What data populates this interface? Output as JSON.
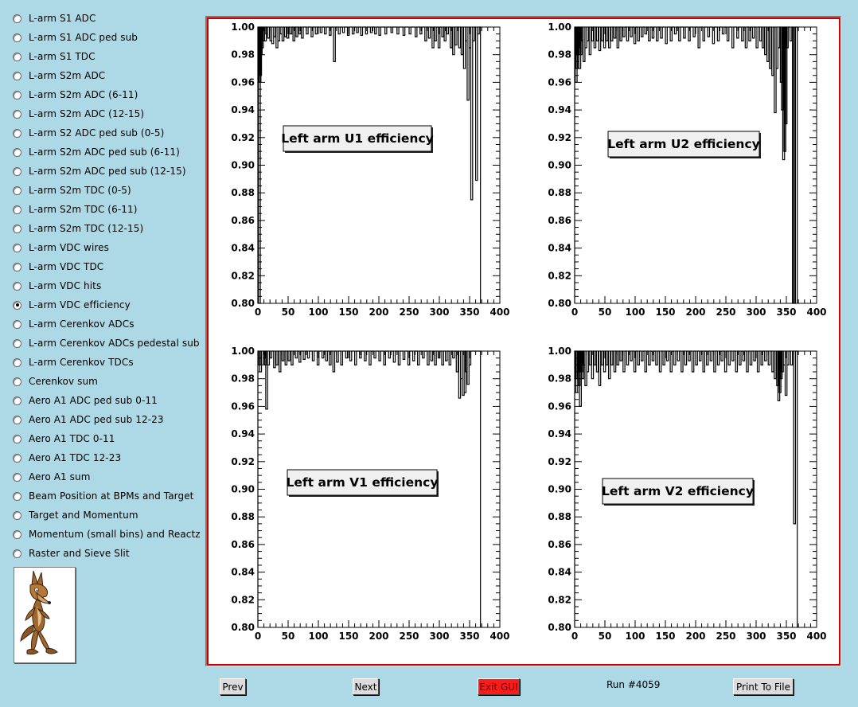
{
  "sidebar": {
    "items": [
      {
        "label": "L-arm S1 ADC",
        "selected": false
      },
      {
        "label": "L-arm S1 ADC ped sub",
        "selected": false
      },
      {
        "label": "L-arm S1 TDC",
        "selected": false
      },
      {
        "label": "L-arm S2m ADC",
        "selected": false
      },
      {
        "label": "L-arm S2m ADC (6-11)",
        "selected": false
      },
      {
        "label": "L-arm S2m ADC (12-15)",
        "selected": false
      },
      {
        "label": "L-arm S2 ADC ped sub (0-5)",
        "selected": false
      },
      {
        "label": "L-arm S2m ADC ped sub (6-11)",
        "selected": false
      },
      {
        "label": "L-arm S2m ADC ped sub (12-15)",
        "selected": false
      },
      {
        "label": "L-arm S2m TDC (0-5)",
        "selected": false
      },
      {
        "label": "L-arm S2m TDC (6-11)",
        "selected": false
      },
      {
        "label": "L-arm S2m TDC (12-15)",
        "selected": false
      },
      {
        "label": "L-arm VDC wires",
        "selected": false
      },
      {
        "label": "L-arm VDC TDC",
        "selected": false
      },
      {
        "label": "L-arm VDC hits",
        "selected": false
      },
      {
        "label": "L-arm VDC efficiency",
        "selected": true
      },
      {
        "label": "L-arm Cerenkov ADCs",
        "selected": false
      },
      {
        "label": "L-arm Cerenkov ADCs pedestal sub",
        "selected": false
      },
      {
        "label": "L-arm Cerenkov TDCs",
        "selected": false
      },
      {
        "label": "Cerenkov sum",
        "selected": false
      },
      {
        "label": "Aero A1 ADC ped sub 0-11",
        "selected": false
      },
      {
        "label": "Aero A1 ADC ped sub 12-23",
        "selected": false
      },
      {
        "label": "Aero A1 TDC 0-11",
        "selected": false
      },
      {
        "label": "Aero A1 TDC 12-23",
        "selected": false
      },
      {
        "label": "Aero A1 sum",
        "selected": false
      },
      {
        "label": "Beam Position at BPMs and Target",
        "selected": false
      },
      {
        "label": "Target and Momentum",
        "selected": false
      },
      {
        "label": "Momentum (small bins) and Reactz",
        "selected": false
      },
      {
        "label": "Raster and Sieve Slit",
        "selected": false
      }
    ],
    "logo_icon": "coyote-logo-icon"
  },
  "footer": {
    "prev_label": "Prev",
    "next_label": "Next",
    "exit_label": "Exit GUI",
    "run_label": "Run #4059",
    "print_label": "Print To File"
  },
  "colors": {
    "background": "#add8e6",
    "canvas_border": "#cc0000",
    "exit_button": "#ff1a1a"
  },
  "chart_data": [
    {
      "type": "bar",
      "title": "Left arm U1 efficiency",
      "xlim": [
        0,
        400
      ],
      "ylim": [
        0.8,
        1.0
      ],
      "xticks": [
        "0",
        "50",
        "100",
        "150",
        "200",
        "250",
        "300",
        "350",
        "400"
      ],
      "yticks": [
        "0.80",
        "0.82",
        "0.84",
        "0.86",
        "0.88",
        "0.90",
        "0.92",
        "0.94",
        "0.96",
        "0.98",
        "1.00"
      ],
      "range": [
        0,
        368
      ],
      "dips": [
        [
          1,
          0.8
        ],
        [
          2,
          0.96
        ],
        [
          3,
          0.965
        ],
        [
          4,
          0.98
        ],
        [
          6,
          0.985
        ],
        [
          8,
          0.99
        ],
        [
          11,
          0.99
        ],
        [
          13,
          0.995
        ],
        [
          16,
          0.992
        ],
        [
          20,
          0.99
        ],
        [
          23,
          0.988
        ],
        [
          26,
          0.993
        ],
        [
          30,
          0.985
        ],
        [
          33,
          0.99
        ],
        [
          37,
          0.995
        ],
        [
          40,
          0.99
        ],
        [
          44,
          0.993
        ],
        [
          48,
          0.992
        ],
        [
          53,
          0.995
        ],
        [
          58,
          0.99
        ],
        [
          63,
          0.993
        ],
        [
          68,
          0.995
        ],
        [
          72,
          0.992
        ],
        [
          80,
          0.995
        ],
        [
          88,
          0.993
        ],
        [
          95,
          0.995
        ],
        [
          103,
          0.996
        ],
        [
          110,
          0.995
        ],
        [
          118,
          0.994
        ],
        [
          125,
          0.975
        ],
        [
          133,
          0.995
        ],
        [
          140,
          0.996
        ],
        [
          148,
          0.994
        ],
        [
          156,
          0.995
        ],
        [
          163,
          0.996
        ],
        [
          170,
          0.994
        ],
        [
          178,
          0.995
        ],
        [
          186,
          0.996
        ],
        [
          193,
          0.995
        ],
        [
          200,
          0.994
        ],
        [
          210,
          0.995
        ],
        [
          220,
          0.996
        ],
        [
          230,
          0.995
        ],
        [
          240,
          0.994
        ],
        [
          250,
          0.995
        ],
        [
          260,
          0.993
        ],
        [
          268,
          0.995
        ],
        [
          276,
          0.99
        ],
        [
          282,
          0.992
        ],
        [
          288,
          0.985
        ],
        [
          292,
          0.99
        ],
        [
          298,
          0.985
        ],
        [
          304,
          0.993
        ],
        [
          308,
          0.99
        ],
        [
          312,
          0.995
        ],
        [
          318,
          0.985
        ],
        [
          322,
          0.98
        ],
        [
          326,
          0.987
        ],
        [
          332,
          0.985
        ],
        [
          336,
          0.98
        ],
        [
          340,
          0.97
        ],
        [
          343,
          0.99
        ],
        [
          346,
          0.947
        ],
        [
          349,
          0.985
        ],
        [
          352,
          0.875
        ],
        [
          355,
          0.99
        ],
        [
          360,
          0.889
        ],
        [
          363,
          0.995
        ]
      ]
    },
    {
      "type": "bar",
      "title": "Left arm U2 efficiency",
      "xlim": [
        0,
        400
      ],
      "ylim": [
        0.8,
        1.0
      ],
      "xticks": [
        "0",
        "50",
        "100",
        "150",
        "200",
        "250",
        "300",
        "350",
        "400"
      ],
      "yticks": [
        "0.80",
        "0.82",
        "0.84",
        "0.86",
        "0.88",
        "0.90",
        "0.92",
        "0.94",
        "0.96",
        "0.98",
        "1.00"
      ],
      "range": [
        0,
        368
      ],
      "dips": [
        [
          1,
          0.96
        ],
        [
          2,
          0.97
        ],
        [
          3,
          0.98
        ],
        [
          5,
          0.985
        ],
        [
          7,
          0.97
        ],
        [
          9,
          0.98
        ],
        [
          11,
          0.99
        ],
        [
          14,
          0.975
        ],
        [
          17,
          0.985
        ],
        [
          20,
          0.99
        ],
        [
          24,
          0.98
        ],
        [
          28,
          0.99
        ],
        [
          32,
          0.985
        ],
        [
          36,
          0.99
        ],
        [
          40,
          0.983
        ],
        [
          44,
          0.99
        ],
        [
          48,
          0.985
        ],
        [
          52,
          0.99
        ],
        [
          56,
          0.985
        ],
        [
          60,
          0.99
        ],
        [
          65,
          0.992
        ],
        [
          70,
          0.985
        ],
        [
          75,
          0.99
        ],
        [
          80,
          0.993
        ],
        [
          86,
          0.99
        ],
        [
          92,
          0.993
        ],
        [
          98,
          0.988
        ],
        [
          104,
          0.99
        ],
        [
          110,
          0.993
        ],
        [
          116,
          0.995
        ],
        [
          122,
          0.99
        ],
        [
          128,
          0.992
        ],
        [
          135,
          0.99
        ],
        [
          142,
          0.992
        ],
        [
          150,
          0.988
        ],
        [
          158,
          0.99
        ],
        [
          165,
          0.995
        ],
        [
          172,
          0.99
        ],
        [
          180,
          0.992
        ],
        [
          188,
          0.99
        ],
        [
          196,
          0.993
        ],
        [
          204,
          0.985
        ],
        [
          212,
          0.99
        ],
        [
          220,
          0.993
        ],
        [
          228,
          0.988
        ],
        [
          236,
          0.99
        ],
        [
          244,
          0.995
        ],
        [
          252,
          0.99
        ],
        [
          260,
          0.985
        ],
        [
          268,
          0.992
        ],
        [
          276,
          0.99
        ],
        [
          282,
          0.985
        ],
        [
          288,
          0.99
        ],
        [
          294,
          0.992
        ],
        [
          300,
          0.985
        ],
        [
          306,
          0.99
        ],
        [
          310,
          0.985
        ],
        [
          314,
          0.98
        ],
        [
          318,
          0.975
        ],
        [
          322,
          0.97
        ],
        [
          326,
          0.965
        ],
        [
          330,
          0.938
        ],
        [
          333,
          0.97
        ],
        [
          336,
          0.985
        ],
        [
          340,
          0.96
        ],
        [
          342,
          0.94
        ],
        [
          344,
          0.904
        ],
        [
          346,
          0.91
        ],
        [
          348,
          0.93
        ],
        [
          350,
          0.985
        ],
        [
          356,
          0.99
        ],
        [
          360,
          0.8
        ],
        [
          362,
          0.8
        ]
      ]
    },
    {
      "type": "bar",
      "title": "Left arm V1 efficiency",
      "xlim": [
        0,
        400
      ],
      "ylim": [
        0.8,
        1.0
      ],
      "xticks": [
        "0",
        "50",
        "100",
        "150",
        "200",
        "250",
        "300",
        "350",
        "400"
      ],
      "yticks": [
        "0.80",
        "0.82",
        "0.84",
        "0.86",
        "0.88",
        "0.90",
        "0.92",
        "0.94",
        "0.96",
        "0.98",
        "1.00"
      ],
      "range": [
        0,
        368
      ],
      "dips": [
        [
          1,
          0.99
        ],
        [
          3,
          0.985
        ],
        [
          6,
          0.99
        ],
        [
          9,
          0.995
        ],
        [
          11,
          0.99
        ],
        [
          13,
          0.958
        ],
        [
          16,
          0.99
        ],
        [
          20,
          0.995
        ],
        [
          26,
          0.988
        ],
        [
          30,
          0.99
        ],
        [
          35,
          0.985
        ],
        [
          40,
          0.993
        ],
        [
          45,
          0.99
        ],
        [
          50,
          0.993
        ],
        [
          55,
          0.99
        ],
        [
          62,
          0.995
        ],
        [
          68,
          0.992
        ],
        [
          75,
          0.994
        ],
        [
          82,
          0.995
        ],
        [
          90,
          0.993
        ],
        [
          98,
          0.99
        ],
        [
          106,
          0.995
        ],
        [
          112,
          0.993
        ],
        [
          118,
          0.99
        ],
        [
          124,
          0.985
        ],
        [
          130,
          0.992
        ],
        [
          137,
          0.99
        ],
        [
          145,
          0.995
        ],
        [
          152,
          0.993
        ],
        [
          160,
          0.99
        ],
        [
          168,
          0.995
        ],
        [
          176,
          0.993
        ],
        [
          184,
          0.99
        ],
        [
          192,
          0.995
        ],
        [
          200,
          0.993
        ],
        [
          208,
          0.99
        ],
        [
          216,
          0.995
        ],
        [
          224,
          0.992
        ],
        [
          232,
          0.99
        ],
        [
          240,
          0.994
        ],
        [
          248,
          0.99
        ],
        [
          256,
          0.993
        ],
        [
          264,
          0.99
        ],
        [
          272,
          0.995
        ],
        [
          280,
          0.99
        ],
        [
          286,
          0.993
        ],
        [
          292,
          0.99
        ],
        [
          298,
          0.995
        ],
        [
          304,
          0.99
        ],
        [
          310,
          0.993
        ],
        [
          316,
          0.99
        ],
        [
          322,
          0.995
        ],
        [
          328,
          0.985
        ],
        [
          332,
          0.966
        ],
        [
          335,
          0.98
        ],
        [
          338,
          0.968
        ],
        [
          341,
          0.97
        ],
        [
          343,
          0.985
        ],
        [
          346,
          0.976
        ],
        [
          349,
          0.99
        ]
      ]
    },
    {
      "type": "bar",
      "title": "Left arm V2 efficiency",
      "xlim": [
        0,
        400
      ],
      "ylim": [
        0.8,
        1.0
      ],
      "xticks": [
        "0",
        "50",
        "100",
        "150",
        "200",
        "250",
        "300",
        "350",
        "400"
      ],
      "yticks": [
        "0.80",
        "0.82",
        "0.84",
        "0.86",
        "0.88",
        "0.90",
        "0.92",
        "0.94",
        "0.96",
        "0.98",
        "1.00"
      ],
      "range": [
        0,
        368
      ],
      "dips": [
        [
          1,
          0.98
        ],
        [
          2,
          0.97
        ],
        [
          4,
          0.985
        ],
        [
          6,
          0.975
        ],
        [
          8,
          0.96
        ],
        [
          10,
          0.985
        ],
        [
          12,
          0.98
        ],
        [
          14,
          0.99
        ],
        [
          17,
          0.975
        ],
        [
          20,
          0.985
        ],
        [
          24,
          0.99
        ],
        [
          28,
          0.98
        ],
        [
          32,
          0.99
        ],
        [
          36,
          0.985
        ],
        [
          40,
          0.975
        ],
        [
          44,
          0.99
        ],
        [
          48,
          0.985
        ],
        [
          52,
          0.99
        ],
        [
          56,
          0.98
        ],
        [
          60,
          0.99
        ],
        [
          65,
          0.985
        ],
        [
          70,
          0.99
        ],
        [
          75,
          0.993
        ],
        [
          80,
          0.985
        ],
        [
          86,
          0.99
        ],
        [
          92,
          0.993
        ],
        [
          98,
          0.985
        ],
        [
          104,
          0.99
        ],
        [
          110,
          0.993
        ],
        [
          116,
          0.985
        ],
        [
          122,
          0.99
        ],
        [
          128,
          0.993
        ],
        [
          134,
          0.99
        ],
        [
          140,
          0.985
        ],
        [
          146,
          0.99
        ],
        [
          152,
          0.993
        ],
        [
          158,
          0.985
        ],
        [
          164,
          0.99
        ],
        [
          170,
          0.993
        ],
        [
          176,
          0.985
        ],
        [
          182,
          0.99
        ],
        [
          188,
          0.993
        ],
        [
          194,
          0.985
        ],
        [
          200,
          0.99
        ],
        [
          206,
          0.993
        ],
        [
          212,
          0.985
        ],
        [
          218,
          0.99
        ],
        [
          224,
          0.993
        ],
        [
          230,
          0.985
        ],
        [
          236,
          0.99
        ],
        [
          242,
          0.993
        ],
        [
          248,
          0.985
        ],
        [
          254,
          0.99
        ],
        [
          260,
          0.993
        ],
        [
          266,
          0.985
        ],
        [
          272,
          0.99
        ],
        [
          278,
          0.993
        ],
        [
          284,
          0.985
        ],
        [
          290,
          0.99
        ],
        [
          296,
          0.993
        ],
        [
          302,
          0.985
        ],
        [
          308,
          0.99
        ],
        [
          314,
          0.993
        ],
        [
          320,
          0.99
        ],
        [
          326,
          0.985
        ],
        [
          330,
          0.98
        ],
        [
          334,
          0.975
        ],
        [
          336,
          0.964
        ],
        [
          338,
          0.97
        ],
        [
          340,
          0.98
        ],
        [
          342,
          0.985
        ],
        [
          345,
          0.99
        ],
        [
          348,
          0.968
        ],
        [
          351,
          0.99
        ],
        [
          357,
          0.99
        ],
        [
          362,
          0.875
        ]
      ]
    }
  ]
}
